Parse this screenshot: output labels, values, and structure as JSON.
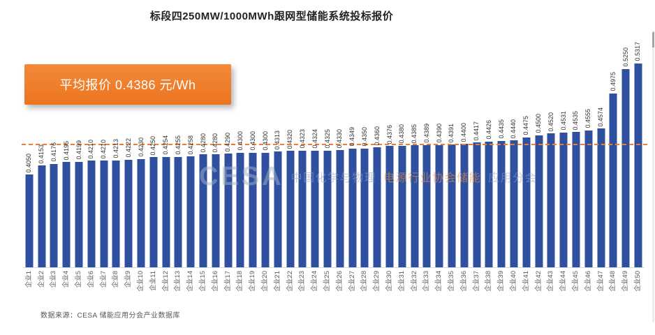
{
  "page": {
    "title": "标段四250MW/1000MWh跟网型储能系统投标报价",
    "source_note": "数据来源：CESA 储能应用分会产业数据库"
  },
  "callout": {
    "text": "平均报价 0.4386 元/Wh",
    "bg_color": "#ED7D31",
    "text_color": "#FFFFFF"
  },
  "watermark": {
    "logo": "CESA",
    "text_left": "中国化学与物理",
    "text_mid": "电源行业协会储能",
    "text_right": "应用分会"
  },
  "chart_data": {
    "type": "bar",
    "title": "标段四250MW/1000MWh跟网型储能系统投标报价",
    "xlabel": "",
    "ylabel": "",
    "unit": "元/Wh",
    "grid": false,
    "legend": false,
    "value_labels": "rotated-90-above-bars",
    "ylim": [
      0.3,
      0.567
    ],
    "bar_color": "#2F4F9F",
    "average": 0.4386,
    "average_label": "平均报价 0.4386 元/Wh",
    "average_line_color": "#ED7D31",
    "categories": [
      "企业1",
      "企业2",
      "企业3",
      "企业4",
      "企业5",
      "企业6",
      "企业7",
      "企业8",
      "企业9",
      "企业10",
      "企业11",
      "企业12",
      "企业13",
      "企业14",
      "企业15",
      "企业16",
      "企业17",
      "企业18",
      "企业19",
      "企业20",
      "企业21",
      "企业22",
      "企业23",
      "企业24",
      "企业25",
      "企业26",
      "企业27",
      "企业28",
      "企业29",
      "企业30",
      "企业31",
      "企业32",
      "企业33",
      "企业34",
      "企业35",
      "企业36",
      "企业37",
      "企业38",
      "企业39",
      "企业40",
      "企业41",
      "企业42",
      "企业43",
      "企业44",
      "企业45",
      "企业46",
      "企业47",
      "企业48",
      "企业49",
      "企业50"
    ],
    "values": [
      0.405,
      0.4153,
      0.4176,
      0.4195,
      0.4199,
      0.421,
      0.421,
      0.4213,
      0.4222,
      0.423,
      0.425,
      0.4254,
      0.4255,
      0.4258,
      0.428,
      0.428,
      0.429,
      0.43,
      0.43,
      0.43,
      0.4313,
      0.432,
      0.4323,
      0.4324,
      0.4325,
      0.433,
      0.4349,
      0.435,
      0.436,
      0.4376,
      0.438,
      0.4385,
      0.4389,
      0.439,
      0.4391,
      0.44,
      0.4417,
      0.4426,
      0.4435,
      0.444,
      0.4475,
      0.45,
      0.452,
      0.4531,
      0.4535,
      0.4555,
      0.4574,
      0.4975,
      0.525,
      0.5317
    ]
  }
}
